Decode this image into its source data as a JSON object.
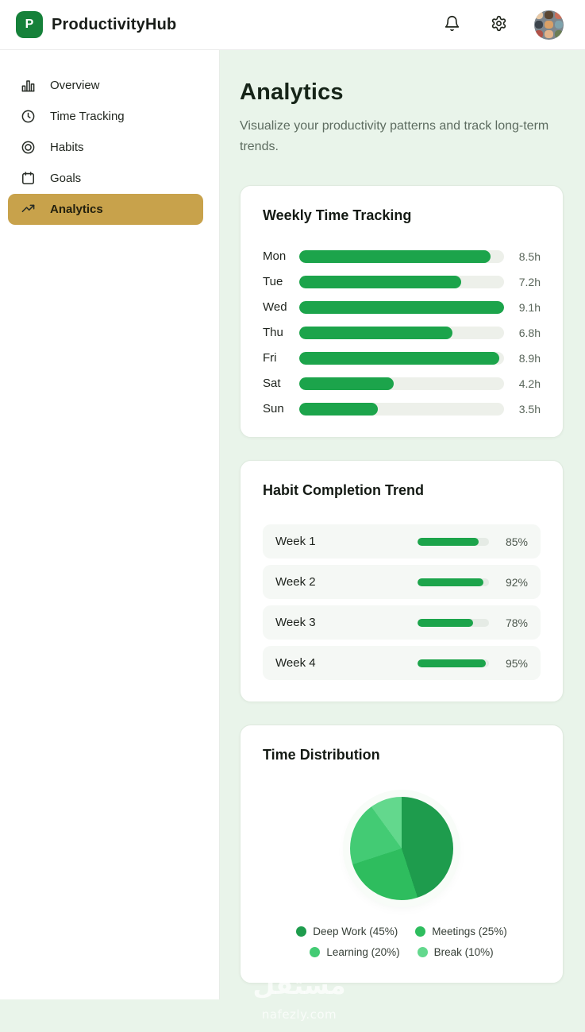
{
  "header": {
    "logo_letter": "P",
    "app_name": "ProductivityHub",
    "icons": [
      "bell-icon",
      "gear-icon"
    ]
  },
  "sidebar": {
    "items": [
      {
        "label": "Overview",
        "icon": "bar-chart-icon",
        "active": false
      },
      {
        "label": "Time Tracking",
        "icon": "clock-icon",
        "active": false
      },
      {
        "label": "Habits",
        "icon": "target-icon",
        "active": false
      },
      {
        "label": "Goals",
        "icon": "calendar-icon",
        "active": false
      },
      {
        "label": "Analytics",
        "icon": "trending-up-icon",
        "active": true
      }
    ]
  },
  "main": {
    "title": "Analytics",
    "subtitle": "Visualize your productivity patterns and track long-term trends."
  },
  "chart_data": [
    {
      "type": "bar",
      "orientation": "horizontal",
      "title": "Weekly Time Tracking",
      "categories": [
        "Mon",
        "Tue",
        "Wed",
        "Thu",
        "Fri",
        "Sat",
        "Sun"
      ],
      "values": [
        8.5,
        7.2,
        9.1,
        6.8,
        8.9,
        4.2,
        3.5
      ],
      "value_labels": [
        "8.5h",
        "7.2h",
        "9.1h",
        "6.8h",
        "8.9h",
        "4.2h",
        "3.5h"
      ],
      "unit": "hours",
      "scale_max": 9.1,
      "bar_color": "#1ca44b",
      "track_color": "#edf0ea"
    },
    {
      "type": "bar",
      "orientation": "horizontal",
      "title": "Habit Completion Trend",
      "categories": [
        "Week 1",
        "Week 2",
        "Week 3",
        "Week 4"
      ],
      "values": [
        85,
        92,
        78,
        95
      ],
      "value_labels": [
        "85%",
        "92%",
        "78%",
        "95%"
      ],
      "unit": "percent",
      "scale_max": 100,
      "bar_color": "#1ca44b",
      "track_color": "#e5ebe5"
    },
    {
      "type": "pie",
      "title": "Time Distribution",
      "labels": [
        "Deep Work",
        "Meetings",
        "Learning",
        "Break"
      ],
      "values": [
        45,
        25,
        20,
        10
      ],
      "legend": [
        "Deep Work (45%)",
        "Meetings (25%)",
        "Learning (20%)",
        "Break (10%)"
      ],
      "colors": [
        "#1e9c4d",
        "#2ebd5e",
        "#43cb74",
        "#63d88d"
      ],
      "start_angle": "top",
      "direction": "clockwise",
      "legend_position": "bottom"
    }
  ],
  "colors": {
    "brand_green": "#16813a",
    "accent_gold": "#c8a24b",
    "bar_green": "#1ca44b",
    "page_bg": "#e9f4ea"
  },
  "watermark": {
    "logo_text": "مستقل",
    "site_text": "nafezly.com"
  }
}
